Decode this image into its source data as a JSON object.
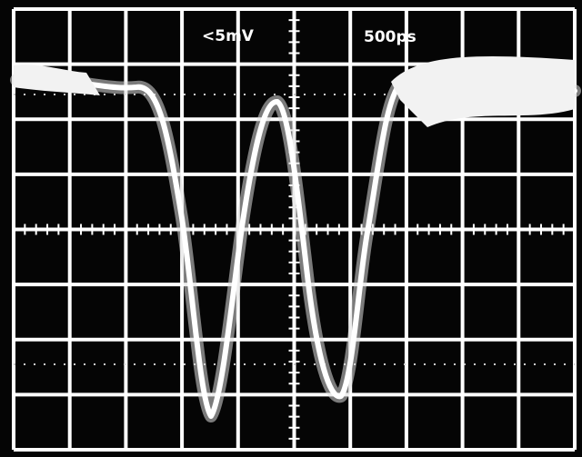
{
  "screen": {
    "volts_per_div": "<5mV",
    "time_per_div": "500ps"
  }
}
